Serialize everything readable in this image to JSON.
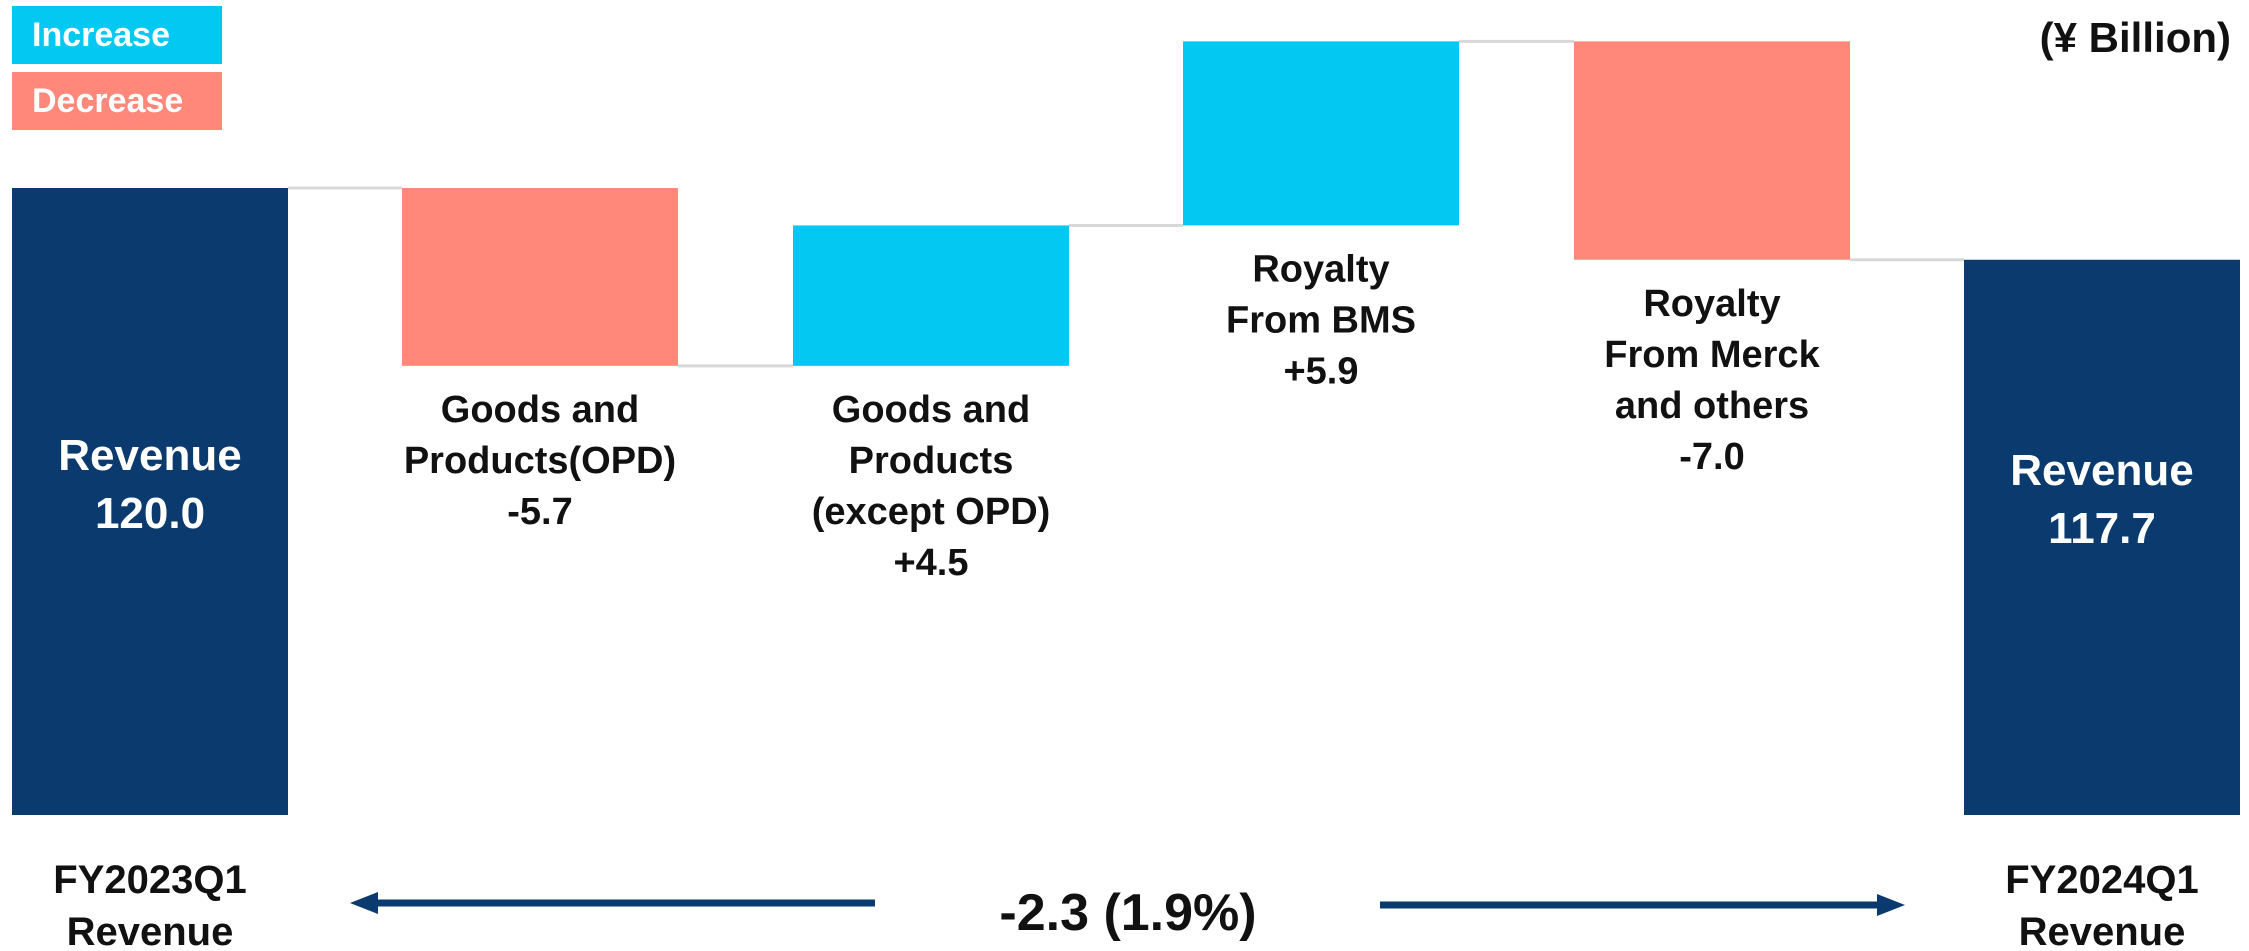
{
  "unit_label": "(¥ Billion)",
  "legend": [
    {
      "label": "Increase",
      "color": "#03C8F2"
    },
    {
      "label": "Decrease",
      "color": "#FF887A"
    }
  ],
  "colors": {
    "total": "#0A3A6E",
    "increase": "#03C8F2",
    "decrease": "#FF887A",
    "arrow": "#0A3A6E"
  },
  "chart_data": {
    "type": "bar",
    "subtype": "waterfall",
    "unit": "(¥ Billion)",
    "steps": [
      {
        "kind": "total",
        "value": 120.0,
        "inner_label": [
          "Revenue",
          "120.0"
        ],
        "category": [
          "FY2023Q1",
          "Revenue"
        ]
      },
      {
        "kind": "decrease",
        "value": -5.7,
        "label": [
          "Goods and",
          "Products(OPD)",
          "-5.7"
        ]
      },
      {
        "kind": "increase",
        "value": 4.5,
        "label": [
          "Goods and",
          "Products",
          "(except OPD)",
          "+4.5"
        ]
      },
      {
        "kind": "increase",
        "value": 5.9,
        "label": [
          "Royalty",
          "From BMS",
          "+5.9"
        ]
      },
      {
        "kind": "decrease",
        "value": -7.0,
        "label": [
          "Royalty",
          "From Merck",
          "and others",
          "-7.0"
        ]
      },
      {
        "kind": "total",
        "value": 117.7,
        "inner_label": [
          "Revenue",
          "117.7"
        ],
        "category": [
          "FY2024Q1",
          "Revenue"
        ]
      }
    ],
    "change_label": "-2.3 (1.9%)",
    "legend": [
      "Increase",
      "Decrease"
    ]
  }
}
